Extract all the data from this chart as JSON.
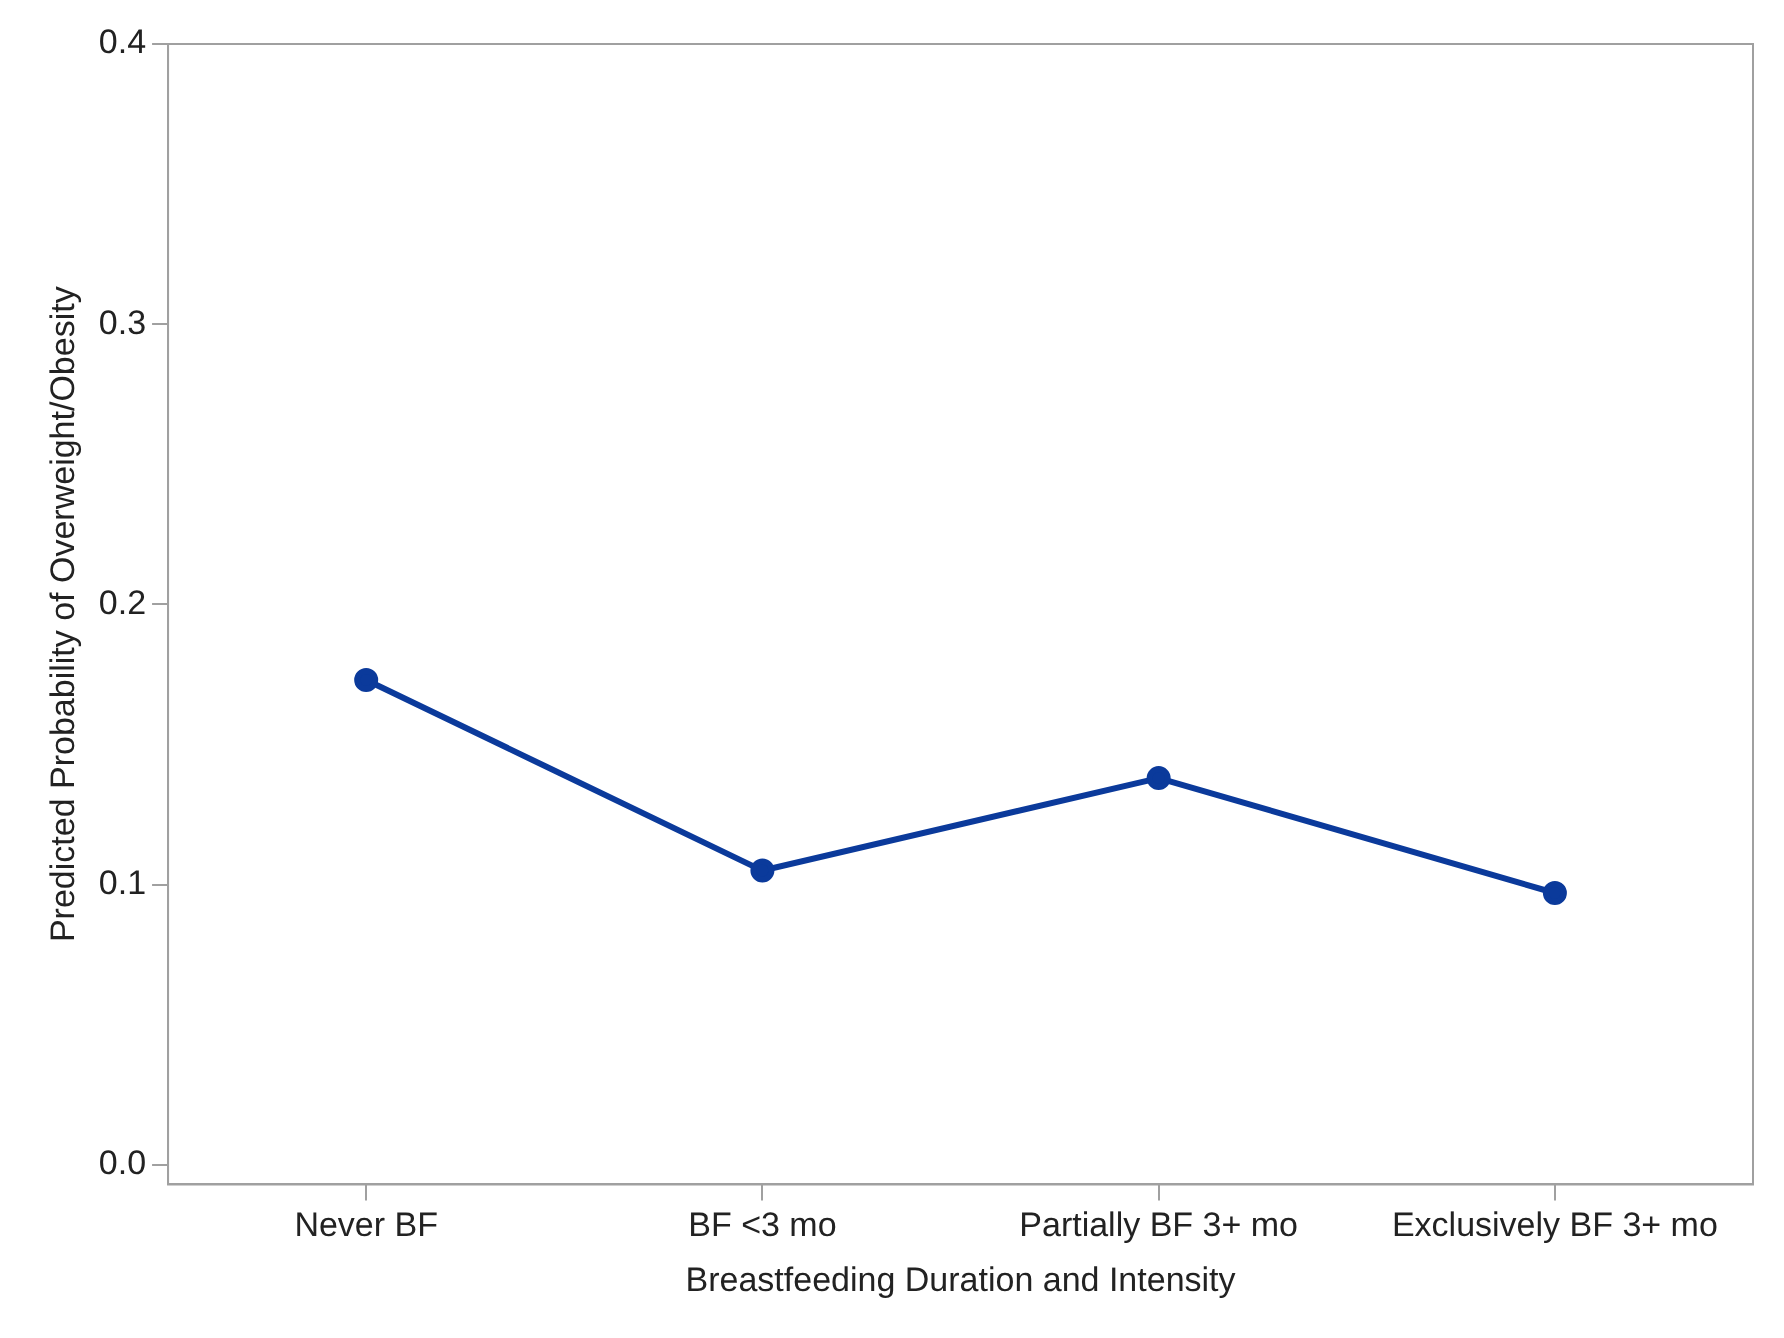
{
  "chart_data": {
    "type": "line",
    "xlabel": "Breastfeeding Duration and Intensity",
    "ylabel": "Predicted Probability of Overweight/Obesity",
    "categories": [
      "Never BF",
      "BF <3 mo",
      "Partially BF 3+ mo",
      "Exclusively BF 3+ mo"
    ],
    "series": [
      {
        "color": "#0b3a9b",
        "values": [
          0.173,
          0.105,
          0.138,
          0.097
        ]
      }
    ],
    "ylim": [
      -0.007,
      0.4
    ],
    "yticks": [
      {
        "value": 0,
        "label": "0.0"
      },
      0.1,
      0.2,
      0.3,
      0.4
    ],
    "grid": false,
    "legend": false,
    "marker": "circle",
    "line_style": "solid"
  }
}
